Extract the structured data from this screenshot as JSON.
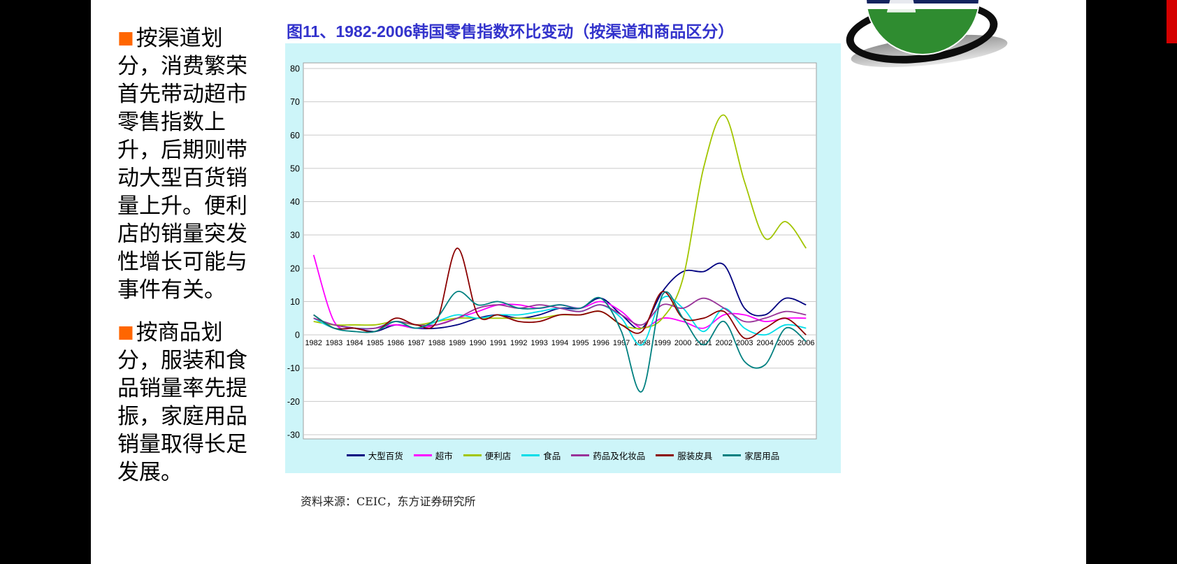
{
  "page": {
    "background": "#000000",
    "accent_red": "#d40000"
  },
  "slide": {
    "bullet": "■",
    "bullet_color": "#ff6600",
    "title_color": "#3333cc",
    "paragraphs": [
      {
        "text": "按渠道划分，消费繁荣首先带动超市零售指数上升，后期则带动大型百货销量上升。便利店的销量突发性增长可能与事件有关。"
      },
      {
        "text": "按商品划分，服装和食品销量率先提振，家庭用品销量取得长足发展。"
      }
    ],
    "source": "资料来源：CEIC，东方证券研究所"
  },
  "chart_data": {
    "type": "line",
    "title": "图11、1982-2006韩国零售指数环比变动（按渠道和商品区分）",
    "panel_bg": "#cdf5f9",
    "plot_bg": "#ffffff",
    "grid": "horizontal",
    "gridline_color": "#c9c9c9",
    "legend_position": "bottom",
    "ylim": [
      -30,
      80
    ],
    "ytick_step": 10,
    "x": [
      "1982",
      "1983",
      "1984",
      "1985",
      "1986",
      "1987",
      "1988",
      "1989",
      "1990",
      "1991",
      "1992",
      "1993",
      "1994",
      "1995",
      "1996",
      "1997",
      "1998",
      "1999",
      "2000",
      "2001",
      "2002",
      "2003",
      "2004",
      "2005",
      "2006"
    ],
    "series": [
      {
        "name": "大型百货",
        "color": "#000080",
        "values": [
          5,
          3,
          2,
          1,
          3,
          2,
          2,
          3,
          5,
          6,
          5,
          6,
          8,
          8,
          11,
          6,
          2,
          13,
          19,
          19,
          21,
          8,
          6,
          11,
          9
        ]
      },
      {
        "name": "超市",
        "color": "#ff00ff",
        "values": [
          24,
          4,
          2,
          2,
          3,
          2,
          3,
          5,
          7,
          9,
          9,
          8,
          9,
          8,
          10,
          7,
          2,
          5,
          4,
          2,
          6,
          6,
          4,
          5,
          5
        ]
      },
      {
        "name": "便利店",
        "color": "#a2c500",
        "values": [
          4,
          3,
          3,
          3,
          4,
          3,
          4,
          5,
          5,
          5,
          5,
          5,
          6,
          6,
          7,
          3,
          2,
          5,
          17,
          50,
          66,
          46,
          29,
          34,
          26
        ]
      },
      {
        "name": "食品",
        "color": "#00dde8",
        "values": [
          5,
          2,
          2,
          2,
          4,
          2,
          4,
          6,
          5,
          6,
          6,
          7,
          8,
          7,
          9,
          5,
          -3,
          11,
          8,
          1,
          8,
          2,
          0,
          3,
          2
        ]
      },
      {
        "name": "药品及化妆品",
        "color": "#993399",
        "values": [
          5,
          3,
          2,
          2,
          4,
          3,
          3,
          5,
          8,
          9,
          8,
          9,
          8,
          7,
          9,
          6,
          3,
          9,
          8,
          11,
          8,
          4,
          5,
          7,
          6
        ]
      },
      {
        "name": "服装皮具",
        "color": "#8b0000",
        "values": [
          6,
          2,
          2,
          1,
          5,
          3,
          4,
          26,
          6,
          6,
          4,
          4,
          6,
          6,
          7,
          3,
          1,
          13,
          5,
          5,
          7,
          -1,
          2,
          5,
          0
        ]
      },
      {
        "name": "家居用品",
        "color": "#008080",
        "values": [
          6,
          2,
          1,
          1,
          4,
          2,
          5,
          13,
          9,
          10,
          8,
          8,
          9,
          8,
          11,
          1,
          -17,
          12,
          5,
          -3,
          4,
          -8,
          -9,
          2,
          -2
        ]
      }
    ]
  }
}
